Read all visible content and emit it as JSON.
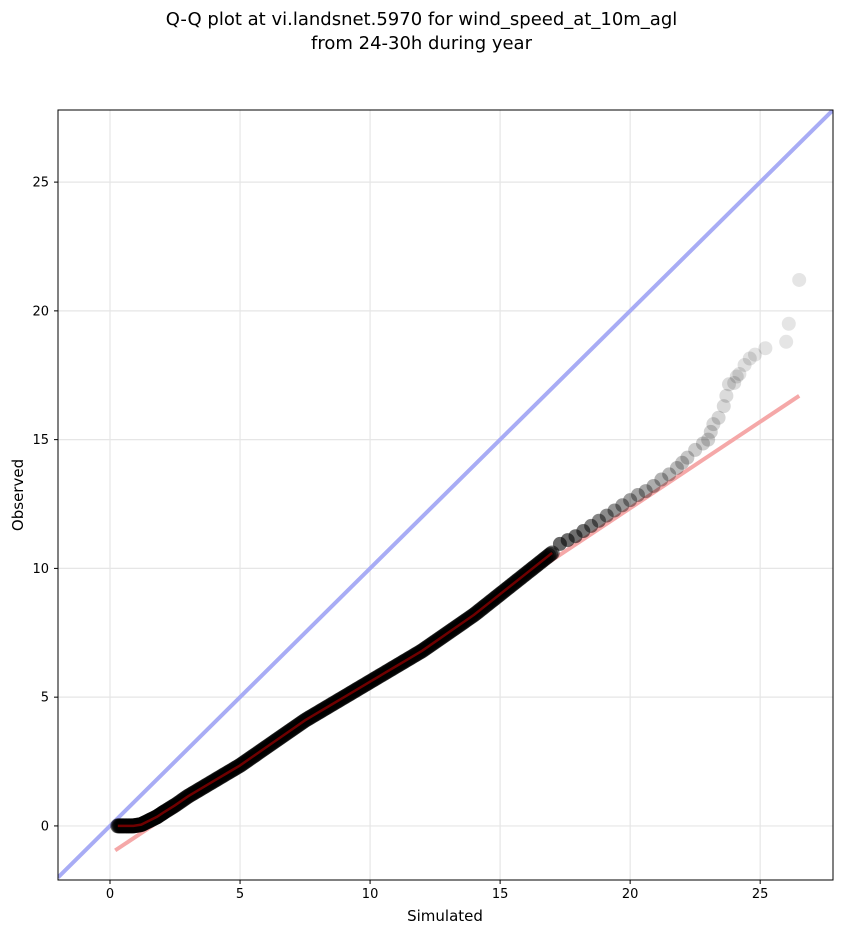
{
  "chart_data": {
    "type": "scatter",
    "title_line1": "Q-Q plot at vi.landsnet.5970 for wind_speed_at_10m_agl",
    "title_line2": "from 24-30h during year",
    "xlabel": "Simulated",
    "ylabel": "Observed",
    "xlim": [
      -2.0,
      27.8
    ],
    "ylim": [
      -2.1,
      27.8
    ],
    "xticks": [
      0,
      5,
      10,
      15,
      20,
      25
    ],
    "yticks": [
      0,
      5,
      10,
      15,
      20,
      25
    ],
    "grid": true,
    "colors": {
      "points": "#000000",
      "identity_line": "#a8acf5",
      "fit_line": "#f5a8a8",
      "dense_overlay": "#8b0000"
    },
    "identity_line": {
      "x": [
        -2.0,
        27.8
      ],
      "y": [
        -2.0,
        27.8
      ]
    },
    "fit_line": {
      "x": [
        0.2,
        26.5
      ],
      "y": [
        -0.95,
        16.7
      ]
    },
    "quantiles_dense": {
      "x": [
        0.3,
        0.6,
        0.9,
        1.2,
        1.5,
        1.8,
        2.1,
        2.5,
        3.0,
        3.5,
        4.0,
        4.5,
        5.0,
        5.5,
        6.0,
        6.5,
        7.0,
        7.5,
        8.0,
        8.5,
        9.0,
        9.5,
        10.0,
        10.5,
        11.0,
        11.5,
        12.0,
        12.5,
        13.0,
        13.5,
        14.0,
        14.5,
        15.0,
        15.5,
        16.0,
        16.5,
        17.0
      ],
      "y": [
        0.0,
        0.0,
        0.0,
        0.05,
        0.2,
        0.35,
        0.55,
        0.8,
        1.15,
        1.45,
        1.75,
        2.05,
        2.35,
        2.7,
        3.05,
        3.4,
        3.75,
        4.1,
        4.4,
        4.7,
        5.0,
        5.3,
        5.6,
        5.9,
        6.2,
        6.5,
        6.8,
        7.15,
        7.5,
        7.85,
        8.2,
        8.6,
        9.0,
        9.4,
        9.8,
        10.2,
        10.6
      ]
    },
    "quantiles_tail": {
      "x": [
        17.3,
        17.6,
        17.9,
        18.2,
        18.5,
        18.8,
        19.1,
        19.4,
        19.7,
        20.0,
        20.3,
        20.6,
        20.9,
        21.2,
        21.5,
        21.8,
        22.0,
        22.2,
        22.5,
        22.8,
        23.0,
        23.1,
        23.2,
        23.4,
        23.6,
        23.7,
        23.8,
        24.0,
        24.1,
        24.2,
        24.4,
        24.6,
        24.8,
        25.2,
        26.0,
        26.1,
        26.5
      ],
      "y": [
        10.95,
        11.1,
        11.25,
        11.45,
        11.65,
        11.85,
        12.05,
        12.25,
        12.45,
        12.65,
        12.85,
        13.0,
        13.2,
        13.45,
        13.65,
        13.9,
        14.1,
        14.3,
        14.6,
        14.85,
        15.0,
        15.3,
        15.6,
        15.85,
        16.3,
        16.7,
        17.15,
        17.2,
        17.45,
        17.55,
        17.9,
        18.15,
        18.3,
        18.55,
        18.8,
        19.5,
        21.2
      ]
    },
    "tail_opacity": [
      0.6,
      0.58,
      0.56,
      0.54,
      0.5,
      0.48,
      0.45,
      0.42,
      0.4,
      0.38,
      0.36,
      0.34,
      0.32,
      0.3,
      0.28,
      0.26,
      0.24,
      0.22,
      0.2,
      0.2,
      0.18,
      0.18,
      0.16,
      0.16,
      0.15,
      0.14,
      0.14,
      0.13,
      0.13,
      0.12,
      0.12,
      0.12,
      0.11,
      0.11,
      0.1,
      0.1,
      0.1
    ]
  }
}
